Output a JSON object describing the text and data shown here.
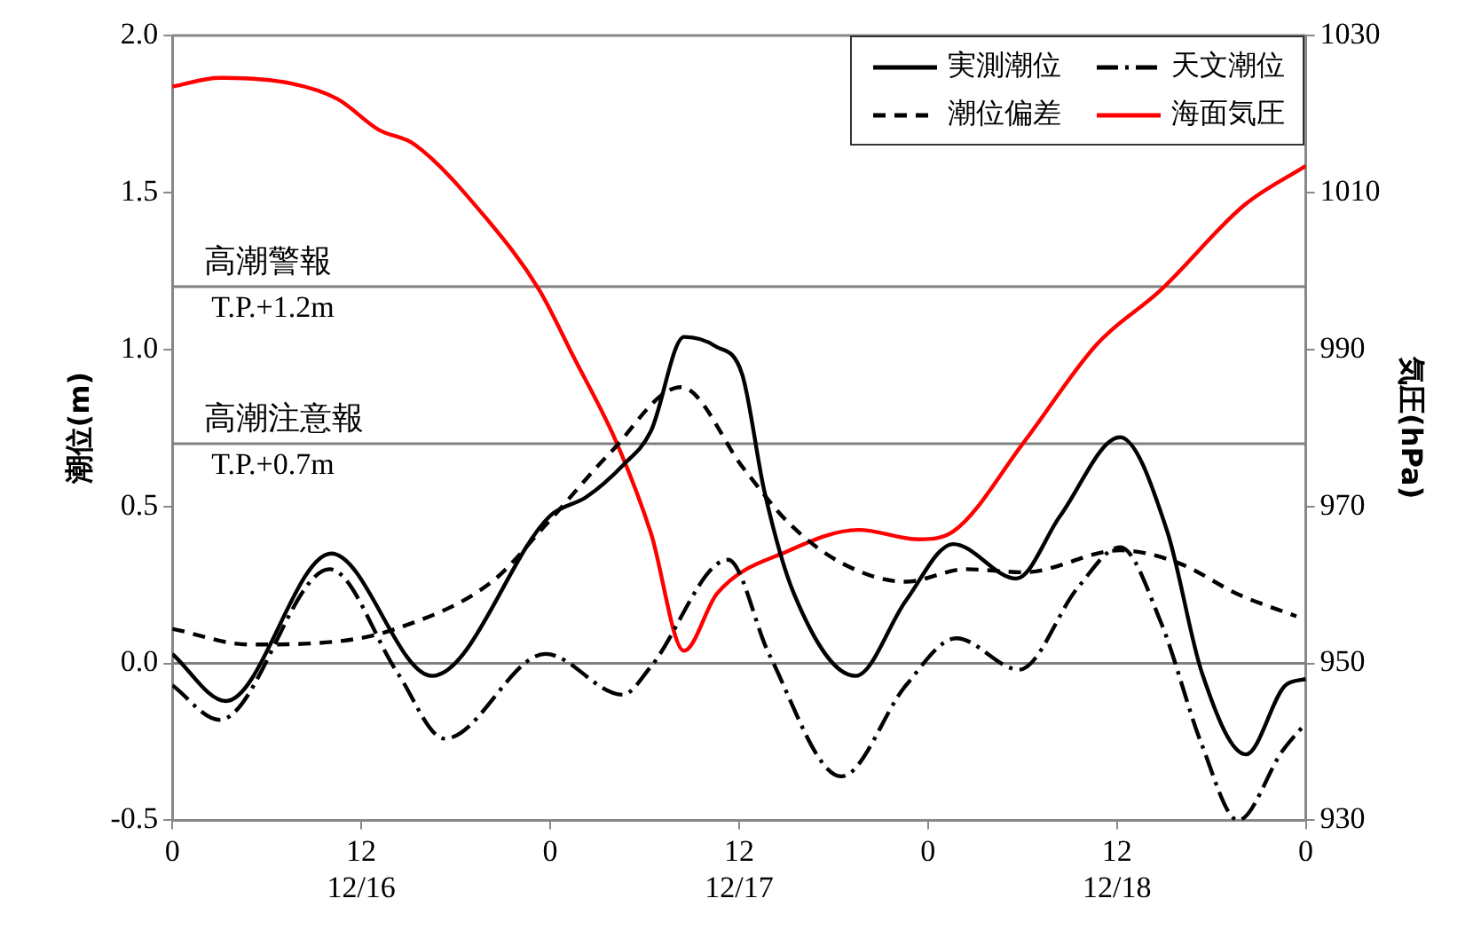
{
  "chart_data": {
    "type": "line",
    "ylabel": "潮位(m)",
    "y2label": "気圧(hPa)",
    "xlim": [
      "--12-16T00:00",
      "--12-19T00:00"
    ],
    "xticks": [
      {
        "value": "--12-16T00:00",
        "label": "0"
      },
      {
        "value": "--12-16T12:00",
        "label": "12\n12/16"
      },
      {
        "value": "--12-17T00:00",
        "label": "0"
      },
      {
        "value": "--12-17T12:00",
        "label": "12\n12/17"
      },
      {
        "value": "--12-18T00:00",
        "label": "0"
      },
      {
        "value": "--12-18T12:00",
        "label": "12\n12/18"
      },
      {
        "value": "--12-19T00:00",
        "label": "0"
      }
    ],
    "ylim": [
      -0.5,
      2.0
    ],
    "yticks": [
      {
        "value": -0.5,
        "label": "-0.5"
      },
      {
        "value": 0,
        "label": "0.0"
      },
      {
        "value": 0.5,
        "label": "0.5"
      },
      {
        "value": 1,
        "label": "1.0"
      },
      {
        "value": 1.5,
        "label": "1.5"
      },
      {
        "value": 2,
        "label": "2.0"
      }
    ],
    "y2lim": [
      930,
      1030
    ],
    "y2ticks": [
      930,
      950,
      970,
      990,
      1010,
      1030
    ],
    "grid": false,
    "legend": "top right",
    "marker": "none",
    "ref_lines": [
      {
        "axis": "y",
        "value": 1.2,
        "label": "高潮警報\nT.P.+1.2m",
        "color": "#808080"
      },
      {
        "axis": "y",
        "value": 0.7,
        "label": "高潮注意報\nT.P.+0.7m",
        "color": "#808080"
      },
      {
        "axis": "y",
        "value": 0,
        "color": "#808080"
      }
    ],
    "series": [
      {
        "name": "実測潮位",
        "color": "#000000",
        "line_style": "solid",
        "x": [
          "--12-16T00:00",
          "--12-16T03:24",
          "--12-16T10:06",
          "--12-16T16:30",
          "--12-17T00:00",
          "--12-17T02:18",
          "--12-17T04:36",
          "--12-17T06:24",
          "--12-17T08:30",
          "--12-17T10:30",
          "--12-17T12:12",
          "--12-17T13:36",
          "--12-17T15:30",
          "--12-17T19:24",
          "--12-17T22:36",
          "--12-18T01:36",
          "--12-18T05:36",
          "--12-18T08:24",
          "--12-18T12:12",
          "--12-18T15:12",
          "--12-18T17:24",
          "--12-18T20:12",
          "--12-18T22:42",
          "--12-19T00:00"
        ],
        "values": [
          0.03,
          -0.12,
          0.35,
          -0.04,
          0.47,
          0.53,
          0.63,
          0.74,
          1.04,
          1.01,
          0.92,
          0.55,
          0.22,
          -0.04,
          0.2,
          0.38,
          0.27,
          0.47,
          0.72,
          0.42,
          -0.03,
          -0.29,
          -0.07,
          -0.05
        ]
      },
      {
        "name": "天文潮位",
        "color": "#000000",
        "line_style": "dashdot",
        "x": [
          "--12-16T00:00",
          "--12-16T03:00",
          "--12-16T10:00",
          "--12-16T14:18",
          "--12-16T17:18",
          "--12-16T23:42",
          "--12-17T04:36",
          "--12-17T06:24",
          "--12-17T11:18",
          "--12-17T13:54",
          "--12-17T18:30",
          "--12-17T22:36",
          "--12-18T01:48",
          "--12-18T05:48",
          "--12-18T09:30",
          "--12-18T12:12",
          "--12-18T14:48",
          "--12-18T17:24",
          "--12-18T19:42",
          "--12-18T22:30",
          "--12-19T00:00"
        ],
        "values": [
          -0.07,
          -0.18,
          0.3,
          -0.03,
          -0.24,
          0.03,
          -0.1,
          -0.01,
          0.33,
          0.03,
          -0.36,
          -0.07,
          0.08,
          -0.02,
          0.24,
          0.37,
          0.13,
          -0.26,
          -0.5,
          -0.28,
          -0.19
        ]
      },
      {
        "name": "潮位偏差",
        "color": "#000000",
        "line_style": "dashed",
        "x": [
          "--12-16T00:00",
          "--12-16T04:54",
          "--12-16T10:30",
          "--12-16T14:12",
          "--12-16T20:18",
          "--12-16T23:42",
          "--12-17T03:48",
          "--12-17T08:18",
          "--12-17T12:18",
          "--12-17T15:06",
          "--12-17T18:30",
          "--12-17T22:36",
          "--12-18T02:24",
          "--12-18T06:06",
          "--12-18T12:12",
          "--12-18T15:54",
          "--12-18T19:42",
          "--12-18T23:24"
        ],
        "values": [
          0.11,
          0.06,
          0.07,
          0.11,
          0.26,
          0.44,
          0.67,
          0.88,
          0.62,
          0.45,
          0.32,
          0.26,
          0.3,
          0.29,
          0.36,
          0.32,
          0.22,
          0.15
        ]
      },
      {
        "name": "海面気圧",
        "color": "#ff0000",
        "line_style": "solid",
        "axis": "y2",
        "x": [
          "--12-16T00:00",
          "--12-16T03:00",
          "--12-16T07:30",
          "--12-16T10:30",
          "--12-16T13:06",
          "--12-16T15:24",
          "--12-16T19:54",
          "--12-16T23:18",
          "--12-17T01:30",
          "--12-17T04:12",
          "--12-17T06:24",
          "--12-17T08:30",
          "--12-17T10:36",
          "--12-17T15:06",
          "--12-17T19:36",
          "--12-17T23:24",
          "--12-18T01:36",
          "--12-18T06:06",
          "--12-18T10:42",
          "--12-18T14:48",
          "--12-18T20:06",
          "--12-19T00:00"
        ],
        "values": [
          1023.5,
          1024.6,
          1023.9,
          1021.9,
          1018,
          1016.1,
          1006.8,
          997.6,
          989,
          978.2,
          966.6,
          951.6,
          958.9,
          964.3,
          967,
          965.8,
          966.8,
          978.2,
          990.6,
          997.6,
          1008.4,
          1013.4
        ]
      }
    ]
  }
}
